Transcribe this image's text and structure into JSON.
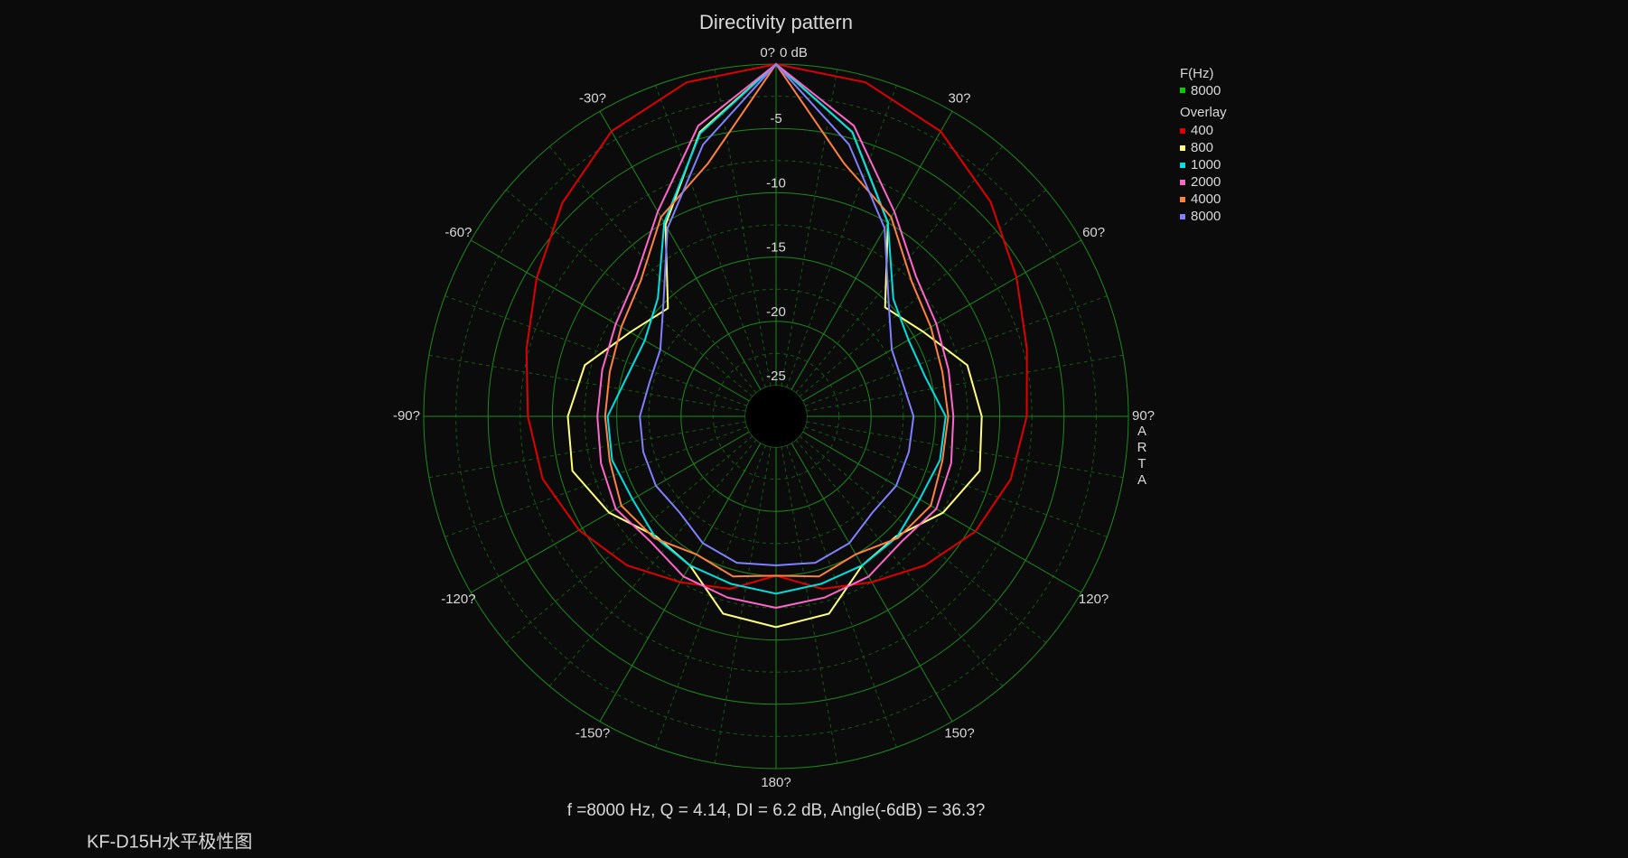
{
  "chart_data": {
    "type": "polar",
    "title": "Directivity pattern",
    "x": [
      -180,
      -165,
      -150,
      -135,
      -120,
      -105,
      -90,
      -75,
      -60,
      -45,
      -30,
      -15,
      0,
      15,
      30,
      45,
      60,
      75,
      90,
      105,
      120,
      135,
      150,
      165,
      180
    ],
    "xticks": [
      {
        "value": 0,
        "label": "0?"
      },
      {
        "value": 30,
        "label": "30?"
      },
      {
        "value": 60,
        "label": "60?"
      },
      {
        "value": 90,
        "label": "90?"
      },
      {
        "value": 120,
        "label": "120?"
      },
      {
        "value": 150,
        "label": "150?"
      },
      {
        "value": 180,
        "label": "180?"
      },
      {
        "value": -150,
        "label": "-150?"
      },
      {
        "value": -120,
        "label": "-120?"
      },
      {
        "value": -90,
        "label": "-90?"
      },
      {
        "value": -60,
        "label": "-60?"
      },
      {
        "value": -30,
        "label": "-30?"
      }
    ],
    "rlim": [
      -25,
      0
    ],
    "rticks": [
      {
        "value": 0,
        "label": "0 dB"
      },
      -5,
      -10,
      -15,
      -20,
      -25
    ],
    "grid": true,
    "legend_title": "F(Hz)",
    "current": {
      "name": "8000",
      "color": "#00d000"
    },
    "overlay_title": "Overlay",
    "series": [
      {
        "name": "400",
        "color": "#e00000",
        "values": [
          -15,
          -13.5,
          -12.5,
          -11,
          -9.7,
          -8.6,
          -8.1,
          -7.3,
          -5.9,
          -3.9,
          -1.8,
          -0.5,
          0,
          -0.5,
          -1.8,
          -3.8,
          -5.8,
          -7.2,
          -7.9,
          -8.5,
          -9.5,
          -11,
          -12.5,
          -13.5,
          -15
        ]
      },
      {
        "name": "800",
        "color": "#ffff80",
        "values": [
          -11,
          -11.5,
          -14,
          -14.2,
          -12.4,
          -11,
          -11.2,
          -12,
          -14.3,
          -15.5,
          -10.2,
          -4.5,
          0,
          -4.5,
          -10,
          -15.4,
          -14.2,
          -12,
          -11.4,
          -11,
          -12.4,
          -14.2,
          -14,
          -11.5,
          -11
        ]
      },
      {
        "name": "1000",
        "color": "#00e0e0",
        "values": [
          -13.6,
          -13.9,
          -14,
          -14.1,
          -14.5,
          -14.2,
          -14.3,
          -15.4,
          -15.6,
          -14.4,
          -10,
          -4.6,
          0,
          -4.5,
          -10,
          -14.5,
          -15.5,
          -15.4,
          -14.2,
          -14.2,
          -14.5,
          -14.1,
          -14,
          -13.9,
          -13.6
        ]
      },
      {
        "name": "2000",
        "color": "#ff66cc",
        "values": [
          -12.5,
          -12.8,
          -13,
          -13.6,
          -13,
          -13.3,
          -13.5,
          -13.4,
          -13,
          -12,
          -9,
          -4,
          0,
          -4,
          -9,
          -12,
          -13,
          -13.5,
          -13.6,
          -13.3,
          -13,
          -13.6,
          -13,
          -12.8,
          -12.5
        ]
      },
      {
        "name": "4000",
        "color": "#ff8040",
        "values": [
          -15,
          -14.5,
          -15,
          -14,
          -13.5,
          -14,
          -14.1,
          -14,
          -13.5,
          -12.5,
          -9.5,
          -7,
          0,
          -7,
          -9.5,
          -12.5,
          -13.5,
          -14,
          -14,
          -14,
          -13.5,
          -14,
          -15,
          -14.5,
          -15
        ]
      },
      {
        "name": "8000",
        "color": "#8080ff",
        "values": [
          -15.8,
          -15.6,
          -16,
          -16.8,
          -16.6,
          -16.7,
          -16.8,
          -17.2,
          -17,
          -15,
          -10.5,
          -5.5,
          0,
          -5.5,
          -10.5,
          -15,
          -17,
          -17.2,
          -16.7,
          -16.7,
          -16.6,
          -16.8,
          -16,
          -15.6,
          -15.8
        ]
      }
    ],
    "side_label": "ARTA",
    "stats": "f =8000 Hz,  Q =  4.14,  DI =   6.2 dB, Angle(-6dB) =  36.3?",
    "footer": "KF-D15H水平极性图"
  }
}
